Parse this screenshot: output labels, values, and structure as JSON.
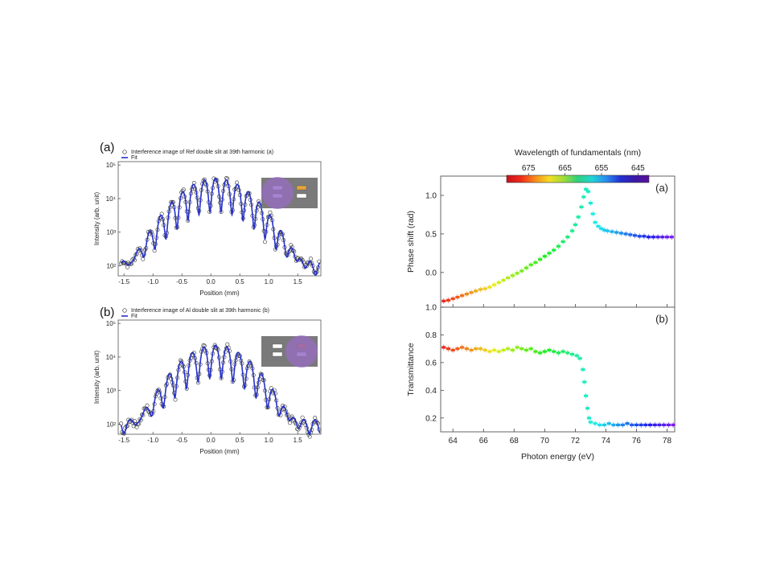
{
  "chart_data": [
    {
      "type": "line",
      "panel_label": "(a)",
      "xlabel": "Position (mm)",
      "ylabel": "Intensity (arb. unit)",
      "xlim": [
        -1.6,
        1.9
      ],
      "ylog": true,
      "ylim_exp": [
        1.7,
        5.1
      ],
      "xticks": [
        "-1.5",
        "-1.0",
        "-0.5",
        "0.0",
        "0.5",
        "1.0",
        "1.5"
      ],
      "xtick_values": [
        -1.5,
        -1.0,
        -0.5,
        0.0,
        0.5,
        1.0,
        1.5
      ],
      "yticks": [
        "10²",
        "10³",
        "10⁴",
        "10⁵"
      ],
      "ytick_exps": [
        2,
        3,
        4,
        5
      ],
      "legend": [
        "Interference image of Ref double slit at 39th harmonic (a)",
        "Fit"
      ],
      "params": {
        "peak_exp": 4.6,
        "fringe_period_mm": 0.19,
        "envelope_sigma_mm": 0.42,
        "floor_exp": 1.95,
        "noise": 0.18
      },
      "inset_highlight": "left",
      "colors": {
        "fit": "#2630c8",
        "marker": "#333333",
        "highlight": "#9a6cc8"
      }
    },
    {
      "type": "line",
      "panel_label": "(b)",
      "xlabel": "Position (mm)",
      "ylabel": "Intensity (arb. unit)",
      "xlim": [
        -1.6,
        1.9
      ],
      "ylog": true,
      "ylim_exp": [
        1.7,
        5.1
      ],
      "xticks": [
        "-1.5",
        "-1.0",
        "-0.5",
        "0.0",
        "0.5",
        "1.0",
        "1.5"
      ],
      "xtick_values": [
        -1.5,
        -1.0,
        -0.5,
        0.0,
        0.5,
        1.0,
        1.5
      ],
      "yticks": [
        "10²",
        "10³",
        "10⁴",
        "10⁵"
      ],
      "ytick_exps": [
        2,
        3,
        4,
        5
      ],
      "legend": [
        "Interference image of Al double slit at 39th harmonic (b)",
        "Fit"
      ],
      "params": {
        "peak_exp": 4.35,
        "fringe_period_mm": 0.2,
        "envelope_sigma_mm": 0.4,
        "floor_exp": 1.95,
        "noise": 0.2
      },
      "inset_highlight": "right",
      "colors": {
        "fit": "#2630c8",
        "marker": "#333333",
        "highlight": "#9a6cc8"
      }
    },
    {
      "type": "scatter",
      "panel_label": "(a)",
      "xlabel": "",
      "ylabel": "Phase shift (rad)",
      "xlim": [
        63.2,
        78.5
      ],
      "ylim": [
        -0.45,
        1.25
      ],
      "yticks": [
        "0.0",
        "0.5",
        "1.0"
      ],
      "ytick_values": [
        0.0,
        0.5,
        1.0
      ],
      "points": [
        [
          63.4,
          -0.37
        ],
        [
          63.7,
          -0.36
        ],
        [
          64.0,
          -0.34
        ],
        [
          64.3,
          -0.32
        ],
        [
          64.6,
          -0.3
        ],
        [
          64.9,
          -0.28
        ],
        [
          65.2,
          -0.26
        ],
        [
          65.5,
          -0.24
        ],
        [
          65.8,
          -0.22
        ],
        [
          66.1,
          -0.21
        ],
        [
          66.4,
          -0.19
        ],
        [
          66.7,
          -0.16
        ],
        [
          67.0,
          -0.13
        ],
        [
          67.3,
          -0.1
        ],
        [
          67.6,
          -0.07
        ],
        [
          67.9,
          -0.04
        ],
        [
          68.2,
          -0.01
        ],
        [
          68.5,
          0.02
        ],
        [
          68.8,
          0.06
        ],
        [
          69.1,
          0.1
        ],
        [
          69.4,
          0.13
        ],
        [
          69.7,
          0.17
        ],
        [
          70.0,
          0.21
        ],
        [
          70.3,
          0.25
        ],
        [
          70.6,
          0.29
        ],
        [
          70.9,
          0.34
        ],
        [
          71.2,
          0.4
        ],
        [
          71.5,
          0.46
        ],
        [
          71.8,
          0.54
        ],
        [
          72.0,
          0.62
        ],
        [
          72.2,
          0.72
        ],
        [
          72.4,
          0.85
        ],
        [
          72.55,
          0.98
        ],
        [
          72.7,
          1.08
        ],
        [
          72.85,
          1.05
        ],
        [
          73.0,
          0.9
        ],
        [
          73.15,
          0.76
        ],
        [
          73.3,
          0.65
        ],
        [
          73.5,
          0.6
        ],
        [
          73.7,
          0.57
        ],
        [
          73.9,
          0.55
        ],
        [
          74.1,
          0.54
        ],
        [
          74.4,
          0.53
        ],
        [
          74.7,
          0.52
        ],
        [
          75.0,
          0.51
        ],
        [
          75.3,
          0.5
        ],
        [
          75.6,
          0.49
        ],
        [
          75.9,
          0.48
        ],
        [
          76.2,
          0.47
        ],
        [
          76.5,
          0.47
        ],
        [
          76.8,
          0.46
        ],
        [
          77.1,
          0.46
        ],
        [
          77.4,
          0.46
        ],
        [
          77.7,
          0.46
        ],
        [
          78.0,
          0.46
        ],
        [
          78.3,
          0.46
        ]
      ]
    },
    {
      "type": "scatter",
      "panel_label": "(b)",
      "xlabel": "Photon energy (eV)",
      "ylabel": "Transmittance",
      "xlim": [
        63.2,
        78.5
      ],
      "ylim": [
        0.1,
        1.0
      ],
      "yticks": [
        "0.2",
        "0.4",
        "0.6",
        "0.8",
        "1.0"
      ],
      "ytick_values": [
        0.2,
        0.4,
        0.6,
        0.8,
        1.0
      ],
      "xticks": [
        "64",
        "66",
        "68",
        "70",
        "72",
        "74",
        "76",
        "78"
      ],
      "xtick_values": [
        64,
        66,
        68,
        70,
        72,
        74,
        76,
        78
      ],
      "points": [
        [
          63.4,
          0.71
        ],
        [
          63.7,
          0.7
        ],
        [
          64.0,
          0.69
        ],
        [
          64.3,
          0.7
        ],
        [
          64.6,
          0.71
        ],
        [
          64.9,
          0.7
        ],
        [
          65.2,
          0.69
        ],
        [
          65.5,
          0.7
        ],
        [
          65.8,
          0.7
        ],
        [
          66.1,
          0.69
        ],
        [
          66.4,
          0.68
        ],
        [
          66.7,
          0.69
        ],
        [
          67.0,
          0.68
        ],
        [
          67.3,
          0.69
        ],
        [
          67.6,
          0.7
        ],
        [
          67.9,
          0.69
        ],
        [
          68.2,
          0.71
        ],
        [
          68.5,
          0.7
        ],
        [
          68.8,
          0.69
        ],
        [
          69.1,
          0.7
        ],
        [
          69.4,
          0.68
        ],
        [
          69.7,
          0.67
        ],
        [
          70.0,
          0.68
        ],
        [
          70.3,
          0.69
        ],
        [
          70.6,
          0.68
        ],
        [
          70.9,
          0.67
        ],
        [
          71.2,
          0.68
        ],
        [
          71.5,
          0.67
        ],
        [
          71.8,
          0.66
        ],
        [
          72.1,
          0.65
        ],
        [
          72.3,
          0.63
        ],
        [
          72.5,
          0.55
        ],
        [
          72.6,
          0.46
        ],
        [
          72.7,
          0.36
        ],
        [
          72.8,
          0.27
        ],
        [
          72.9,
          0.2
        ],
        [
          73.0,
          0.17
        ],
        [
          73.3,
          0.16
        ],
        [
          73.6,
          0.15
        ],
        [
          73.9,
          0.15
        ],
        [
          74.2,
          0.16
        ],
        [
          74.5,
          0.15
        ],
        [
          74.8,
          0.15
        ],
        [
          75.1,
          0.15
        ],
        [
          75.4,
          0.16
        ],
        [
          75.7,
          0.15
        ],
        [
          76.0,
          0.15
        ],
        [
          76.3,
          0.15
        ],
        [
          76.6,
          0.15
        ],
        [
          76.9,
          0.15
        ],
        [
          77.2,
          0.15
        ],
        [
          77.5,
          0.15
        ],
        [
          77.8,
          0.15
        ],
        [
          78.1,
          0.15
        ],
        [
          78.4,
          0.15
        ]
      ]
    }
  ],
  "colorbar": {
    "label": "Wavelength of fundamentals (nm)",
    "ticks": [
      "675",
      "665",
      "655",
      "645"
    ],
    "tick_values": [
      675,
      665,
      655,
      645
    ],
    "range_nm": [
      681,
      642
    ]
  }
}
